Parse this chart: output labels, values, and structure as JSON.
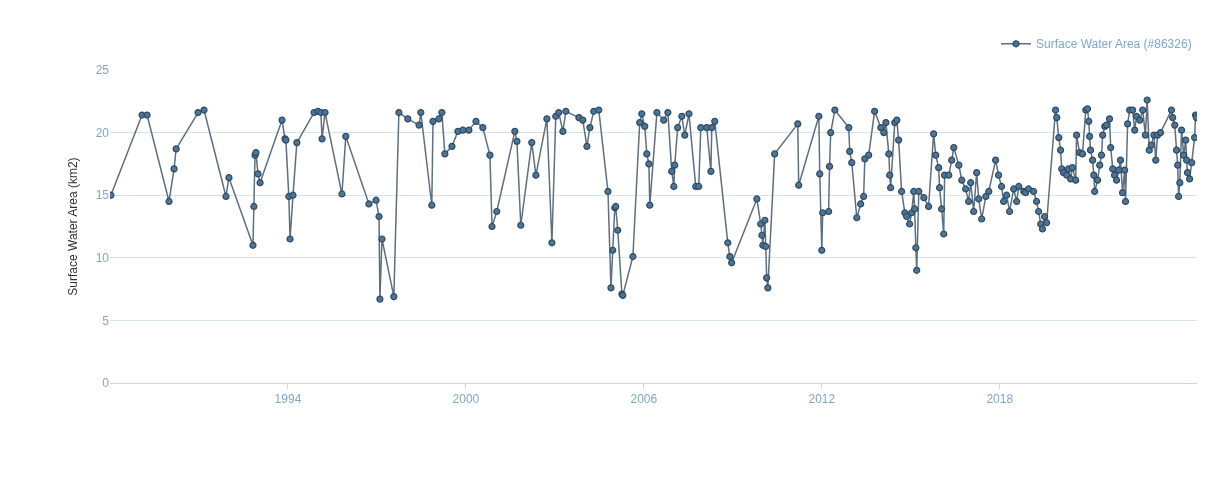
{
  "chart_data": {
    "type": "line",
    "ylabel": "Surface Water Area (km2)",
    "xlim": [
      1988,
      2024.65
    ],
    "xticks": [
      1994,
      2000,
      2006,
      2012,
      2018
    ],
    "ylim": [
      0,
      25
    ],
    "yticks": [
      0,
      5,
      10,
      15,
      20,
      25
    ],
    "grid": "y",
    "legend": "top right",
    "marker": "circle",
    "line_style": "solid",
    "series": [
      {
        "name": "Surface Water Area (#86326)",
        "color": "#4e7596",
        "x": [
          1988.03,
          1989.08,
          1989.25,
          1989.99,
          1990.16,
          1990.23,
          1990.97,
          1991.17,
          1991.91,
          1992.01,
          1992.82,
          1992.85,
          1992.89,
          1992.92,
          1992.99,
          1993.06,
          1993.8,
          1993.9,
          1993.93,
          1994.03,
          1994.07,
          1994.17,
          1994.3,
          1994.88,
          1995.01,
          1995.11,
          1995.15,
          1995.25,
          1995.82,
          1995.95,
          1996.73,
          1996.97,
          1997.07,
          1997.1,
          1997.17,
          1997.57,
          1997.74,
          1998.04,
          1998.42,
          1998.48,
          1998.85,
          1998.89,
          1999.09,
          1999.19,
          1999.29,
          1999.53,
          1999.73,
          1999.9,
          2000.1,
          2000.34,
          2000.57,
          2000.81,
          2000.88,
          2001.04,
          2001.65,
          2001.72,
          2001.85,
          2002.22,
          2002.36,
          2002.73,
          2002.9,
          2003.03,
          2003.13,
          2003.27,
          2003.37,
          2003.81,
          2003.94,
          2004.08,
          2004.18,
          2004.31,
          2004.48,
          2004.79,
          2004.89,
          2004.95,
          2005.02,
          2005.05,
          2005.12,
          2005.26,
          2005.29,
          2005.63,
          2005.86,
          2005.93,
          2006.03,
          2006.1,
          2006.17,
          2006.2,
          2006.44,
          2006.67,
          2006.81,
          2006.94,
          2007.01,
          2007.04,
          2007.14,
          2007.28,
          2007.38,
          2007.52,
          2007.75,
          2007.85,
          2007.92,
          2008.12,
          2008.26,
          2008.29,
          2008.39,
          2008.83,
          2008.9,
          2008.96,
          2009.81,
          2009.94,
          2009.98,
          2010.01,
          2010.08,
          2010.11,
          2010.14,
          2010.18,
          2010.41,
          2011.19,
          2011.22,
          2011.9,
          2011.93,
          2012.0,
          2012.03,
          2012.23,
          2012.26,
          2012.3,
          2012.44,
          2012.91,
          2012.94,
          2013.01,
          2013.18,
          2013.31,
          2013.41,
          2013.45,
          2013.58,
          2013.78,
          2013.99,
          2014.09,
          2014.16,
          2014.26,
          2014.29,
          2014.32,
          2014.46,
          2014.53,
          2014.59,
          2014.69,
          2014.8,
          2014.86,
          2014.96,
          2015.03,
          2015.1,
          2015.13,
          2015.17,
          2015.2,
          2015.27,
          2015.44,
          2015.6,
          2015.77,
          2015.84,
          2015.94,
          2015.97,
          2016.04,
          2016.11,
          2016.14,
          2016.28,
          2016.38,
          2016.45,
          2016.62,
          2016.72,
          2016.85,
          2016.95,
          2017.02,
          2017.12,
          2017.22,
          2017.29,
          2017.39,
          2017.53,
          2017.63,
          2017.86,
          2017.96,
          2018.06,
          2018.13,
          2018.23,
          2018.33,
          2018.47,
          2018.57,
          2018.64,
          2018.81,
          2018.87,
          2018.97,
          2019.14,
          2019.24,
          2019.31,
          2019.38,
          2019.44,
          2019.51,
          2019.58,
          2019.88,
          2019.92,
          2019.99,
          2020.05,
          2020.09,
          2020.15,
          2020.26,
          2020.32,
          2020.39,
          2020.45,
          2020.56,
          2020.59,
          2020.69,
          2020.79,
          2020.9,
          2020.96,
          2021.0,
          2021.03,
          2021.06,
          2021.13,
          2021.17,
          2021.2,
          2021.3,
          2021.37,
          2021.43,
          2021.47,
          2021.54,
          2021.6,
          2021.7,
          2021.74,
          2021.81,
          2021.87,
          2021.94,
          2022.01,
          2022.07,
          2022.14,
          2022.21,
          2022.24,
          2022.31,
          2022.38,
          2022.48,
          2022.55,
          2022.61,
          2022.72,
          2022.82,
          2022.91,
          2022.97,
          2023.04,
          2023.11,
          2023.2,
          2023.26,
          2023.32,
          2023.42,
          2023.79,
          2023.83,
          2023.9,
          2023.96,
          2024.0,
          2024.03,
          2024.07,
          2024.13,
          2024.2,
          2024.27,
          2024.3,
          2024.33,
          2024.4,
          2024.47,
          2024.57,
          2024.6,
          2024.63
        ],
        "values": [
          15.0,
          21.4,
          21.4,
          14.5,
          17.1,
          18.7,
          21.6,
          21.8,
          14.9,
          16.4,
          11.0,
          14.1,
          18.2,
          18.4,
          16.7,
          16.0,
          21.0,
          19.5,
          19.4,
          14.9,
          11.5,
          15.0,
          19.2,
          21.6,
          21.7,
          21.6,
          19.5,
          21.6,
          15.1,
          19.7,
          14.3,
          14.6,
          13.3,
          6.7,
          11.5,
          6.9,
          21.6,
          21.1,
          20.6,
          21.6,
          14.2,
          20.9,
          21.1,
          21.6,
          18.3,
          18.9,
          20.1,
          20.2,
          20.2,
          20.9,
          20.4,
          18.2,
          12.5,
          13.7,
          20.1,
          19.3,
          12.6,
          19.2,
          16.6,
          21.1,
          11.2,
          21.3,
          21.6,
          20.1,
          21.7,
          21.2,
          21.0,
          18.9,
          20.4,
          21.7,
          21.8,
          15.3,
          7.6,
          10.6,
          14.0,
          14.1,
          12.2,
          7.1,
          7.0,
          10.1,
          20.8,
          21.5,
          20.5,
          18.3,
          17.5,
          14.2,
          21.6,
          21.0,
          21.6,
          16.9,
          15.7,
          17.4,
          20.4,
          21.3,
          19.8,
          21.5,
          15.7,
          15.7,
          20.4,
          20.4,
          16.9,
          20.4,
          20.9,
          11.2,
          10.1,
          9.6,
          14.7,
          12.7,
          11.8,
          11.0,
          13.0,
          10.9,
          8.4,
          7.6,
          18.3,
          20.7,
          15.8,
          21.3,
          16.7,
          10.6,
          13.6,
          13.7,
          17.3,
          20.0,
          21.8,
          20.4,
          18.5,
          17.6,
          13.2,
          14.3,
          14.9,
          17.9,
          18.2,
          21.7,
          20.4,
          20.0,
          20.8,
          18.3,
          16.6,
          15.6,
          20.8,
          21.0,
          19.4,
          15.3,
          13.6,
          13.3,
          12.7,
          13.6,
          15.3,
          13.9,
          10.8,
          9.0,
          15.3,
          14.8,
          14.1,
          19.9,
          18.2,
          17.2,
          15.6,
          13.9,
          11.9,
          16.6,
          16.6,
          17.8,
          18.8,
          17.4,
          16.2,
          15.5,
          14.5,
          16.0,
          13.7,
          16.8,
          14.7,
          13.1,
          14.9,
          15.3,
          17.8,
          16.6,
          15.7,
          14.5,
          15.0,
          13.7,
          15.5,
          14.5,
          15.7,
          15.3,
          15.2,
          15.5,
          15.3,
          14.5,
          13.7,
          12.7,
          12.3,
          13.3,
          12.8,
          21.8,
          21.2,
          19.6,
          18.6,
          17.1,
          16.8,
          16.6,
          17.1,
          16.3,
          17.2,
          16.2,
          19.8,
          18.4,
          18.3,
          21.8,
          21.9,
          20.9,
          19.7,
          18.6,
          17.8,
          16.6,
          15.3,
          16.2,
          17.4,
          18.2,
          19.8,
          20.5,
          20.6,
          21.1,
          18.8,
          17.1,
          16.6,
          16.2,
          17.0,
          17.8,
          15.2,
          17.0,
          14.5,
          20.7,
          21.8,
          21.8,
          20.2,
          21.3,
          21.0,
          21.8,
          19.8,
          22.6,
          18.6,
          19.0,
          19.8,
          17.8,
          19.8,
          20.0,
          21.8,
          21.2,
          20.6,
          18.6,
          17.4,
          14.9,
          16.0,
          20.2,
          18.2,
          19.4,
          17.8,
          16.8,
          16.3,
          17.6,
          19.6,
          21.4,
          21.2
        ]
      }
    ]
  }
}
